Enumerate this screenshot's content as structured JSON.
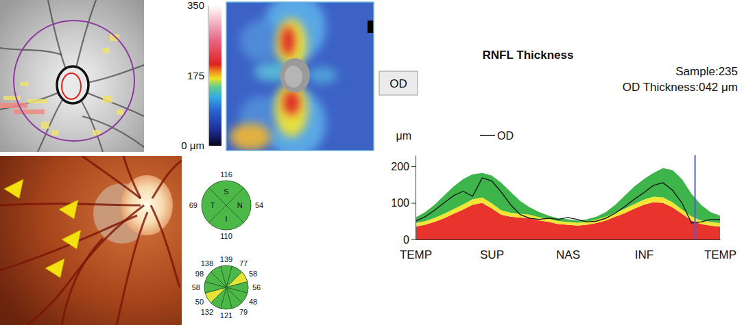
{
  "report": {
    "eye": "OD"
  },
  "heatmap": {
    "color_range": [
      0,
      350
    ],
    "color_ticks": [
      350,
      175,
      {
        "value": 0,
        "label": "0 μm"
      }
    ]
  },
  "chart_data": [
    {
      "type": "line",
      "title": "RNFL Thickness",
      "x": [
        0,
        8,
        16,
        24,
        32,
        40,
        48,
        56,
        64,
        72,
        80,
        88,
        96,
        104,
        112,
        120,
        128,
        136,
        144,
        152,
        160,
        168,
        176,
        184,
        192,
        200,
        208,
        216,
        224,
        232,
        240,
        248,
        256
      ],
      "series": [
        {
          "name": "OD",
          "color": "#1a1a1a",
          "values": [
            50,
            62,
            80,
            100,
            120,
            132,
            118,
            168,
            160,
            130,
            95,
            68,
            58,
            55,
            58,
            55,
            60,
            55,
            48,
            50,
            58,
            72,
            90,
            110,
            128,
            148,
            155,
            135,
            100,
            45,
            48,
            55,
            55
          ]
        }
      ],
      "normal_ranges": [
        {
          "color": "#e8342c",
          "values": [
            35,
            40,
            48,
            58,
            70,
            82,
            95,
            100,
            85,
            68,
            62,
            60,
            58,
            52,
            48,
            42,
            40,
            38,
            40,
            45,
            52,
            62,
            72,
            84,
            95,
            102,
            100,
            88,
            70,
            52,
            42,
            38,
            35
          ]
        },
        {
          "color": "#f2e635",
          "values": [
            10,
            10,
            11,
            12,
            13,
            14,
            15,
            15,
            14,
            12,
            11,
            10,
            10,
            9,
            9,
            8,
            8,
            8,
            8,
            9,
            10,
            11,
            12,
            13,
            14,
            15,
            15,
            14,
            12,
            11,
            10,
            10,
            10
          ]
        },
        {
          "color": "#3db54a",
          "values": [
            15,
            25,
            36,
            50,
            62,
            69,
            68,
            67,
            76,
            75,
            57,
            35,
            20,
            14,
            8,
            8,
            7,
            6,
            7,
            8,
            13,
            22,
            36,
            48,
            56,
            65,
            80,
            88,
            83,
            62,
            43,
            27,
            20
          ]
        }
      ],
      "stacked": true,
      "xlim": [
        0,
        256
      ],
      "xticks": [
        {
          "value": 0,
          "label": "TEMP"
        },
        {
          "value": 64,
          "label": "SUP"
        },
        {
          "value": 128,
          "label": "NAS"
        },
        {
          "value": 192,
          "label": "INF"
        },
        {
          "value": 256,
          "label": "TEMP"
        }
      ],
      "ylim": [
        0,
        230
      ],
      "yticks": [
        0,
        100,
        200
      ],
      "y_label": "μm",
      "legend": "top",
      "cursor_x": 235,
      "annotations": [
        "Sample:235",
        "OD Thickness:042 μm"
      ]
    },
    {
      "type": "sectors",
      "categories": [
        "S",
        "N",
        "I",
        "T"
      ],
      "values": [
        116,
        54,
        110,
        69
      ],
      "colors": [
        "#4cb848",
        "#4cb848",
        "#4cb848",
        "#4cb848"
      ],
      "data_labels": true
    },
    {
      "type": "sectors",
      "values": [
        139,
        77,
        58,
        56,
        48,
        79,
        121,
        132,
        50,
        58,
        98,
        138
      ],
      "colors": [
        "#4cb848",
        "#4cb848",
        "#e6e236",
        "#4cb848",
        "#4cb848",
        "#4cb848",
        "#4cb848",
        "#4cb848",
        "#e6e236",
        "#4cb848",
        "#4cb848",
        "#4cb848"
      ],
      "data_labels": true
    }
  ]
}
